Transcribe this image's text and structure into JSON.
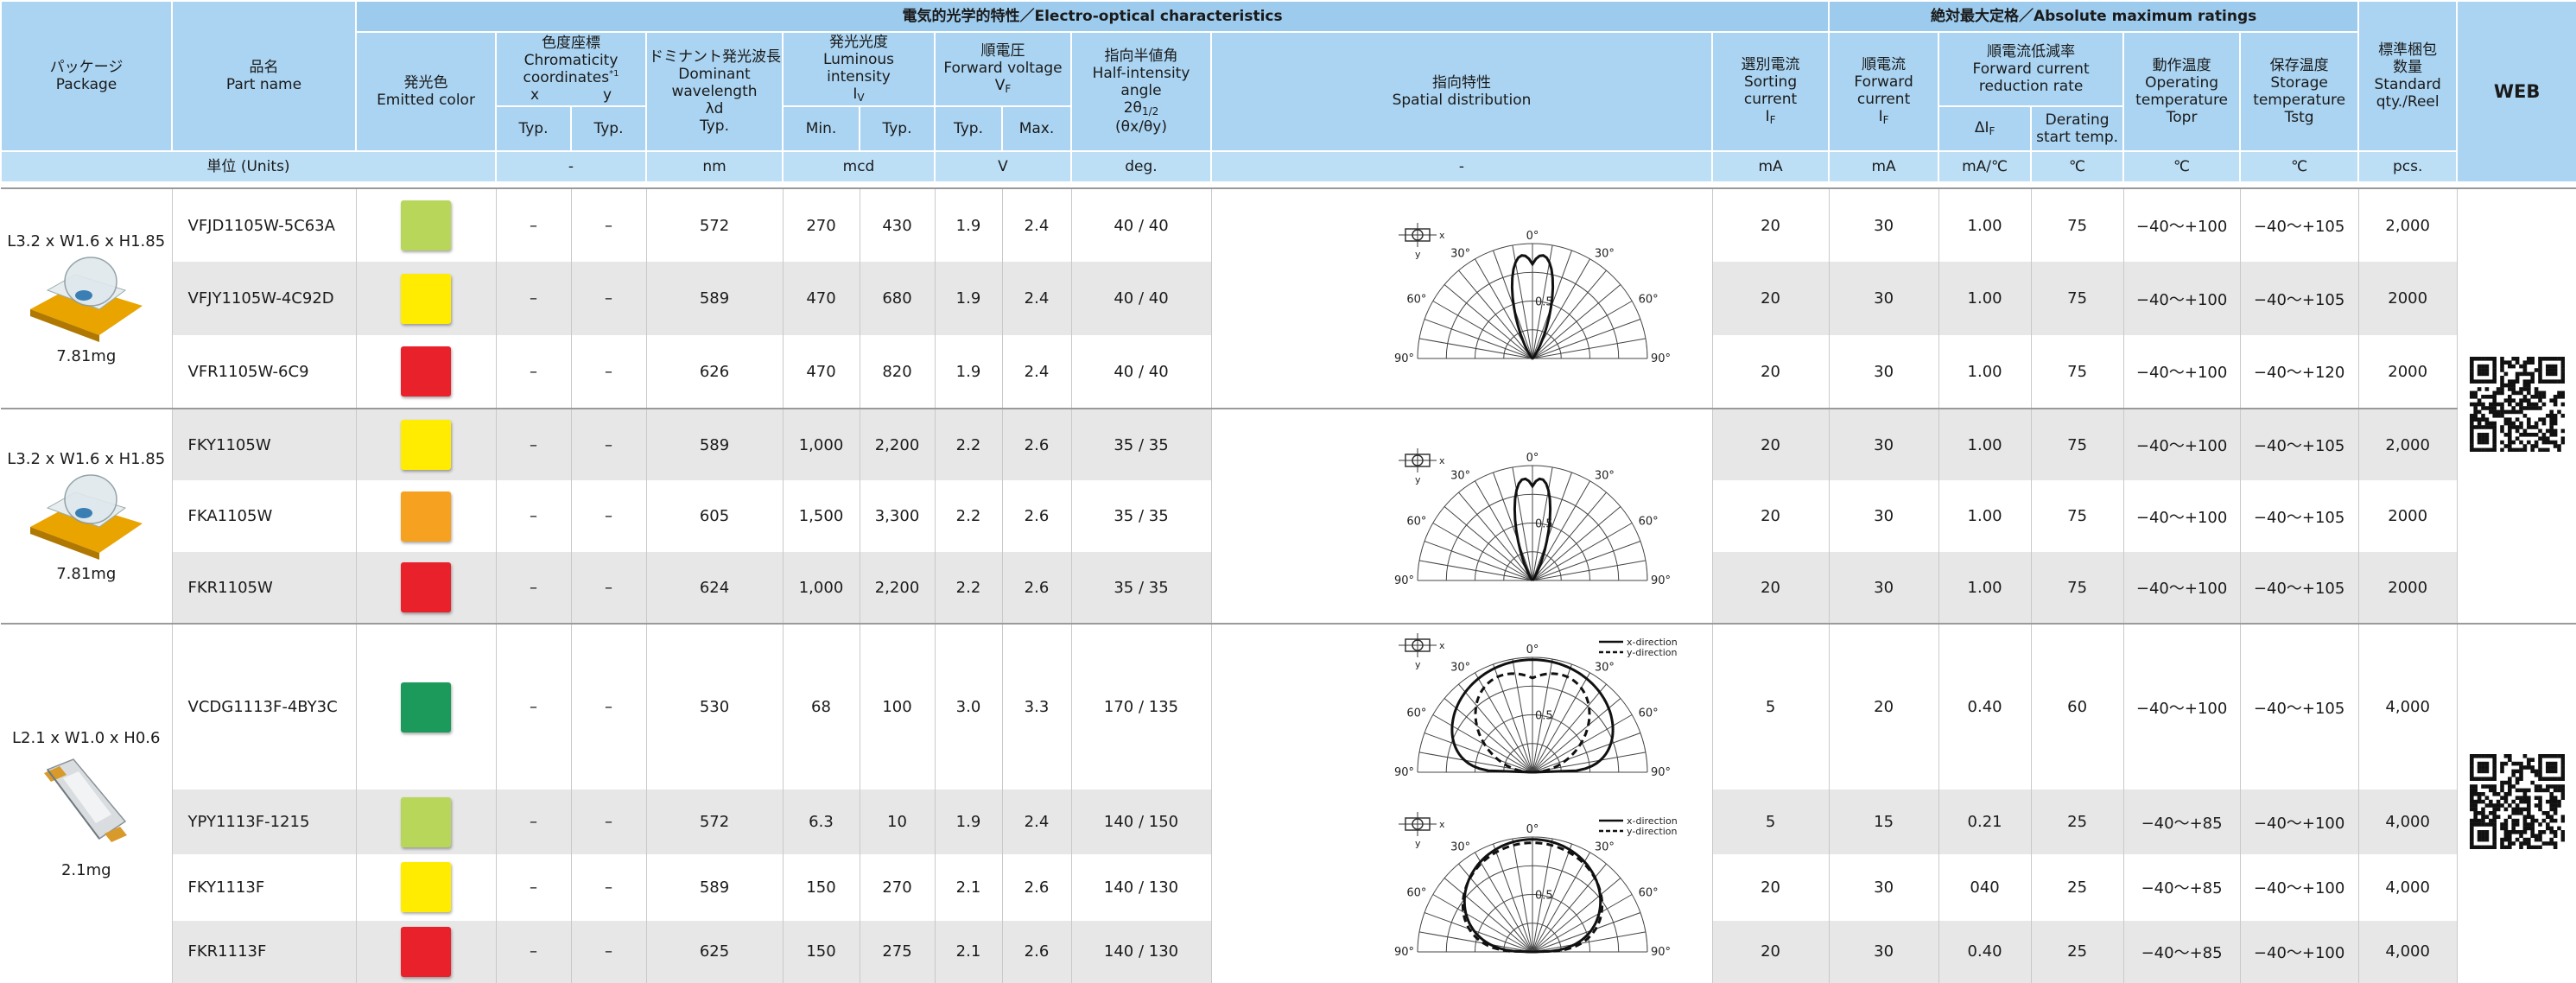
{
  "header": {
    "electro_optical": "電気的光学的特性／Electro-optical characteristics",
    "absolute_max": "絶対最大定格／Absolute maximum ratings",
    "package": {
      "ja": "パッケージ",
      "en": "Package"
    },
    "part_name": {
      "ja": "品名",
      "en": "Part name"
    },
    "emitted_color": {
      "ja": "発光色",
      "en": "Emitted color"
    },
    "chromaticity": {
      "ja": "色度座標",
      "en": [
        "Chromaticity",
        "coordinates"
      ],
      "note": "*1",
      "x": "x",
      "y": "y",
      "x_stat": "Typ.",
      "y_stat": "Typ."
    },
    "dominant": {
      "ja": "ドミナント発光波長",
      "en": [
        "Dominant",
        "wavelength"
      ],
      "symbol": "λd",
      "stat": "Typ."
    },
    "luminous": {
      "ja": "発光光度",
      "en": [
        "Luminous",
        "intensity"
      ],
      "symbol": "I",
      "symbol_sub": "V",
      "min": "Min.",
      "typ": "Typ."
    },
    "forward_voltage": {
      "ja": "順電圧",
      "en": "Forward voltage",
      "symbol": "V",
      "symbol_sub": "F",
      "typ": "Typ.",
      "max": "Max."
    },
    "half_angle": {
      "ja": "指向半値角",
      "en": [
        "Half-intensity",
        "angle"
      ],
      "symbol": "2θ",
      "symbol_sub": "1/2",
      "axes": "(θx/θy)"
    },
    "spatial": {
      "ja": "指向特性",
      "en": "Spatial distribution"
    },
    "sorting": {
      "ja": "選別電流",
      "en": [
        "Sorting",
        "current"
      ],
      "symbol": "I",
      "symbol_sub": "F"
    },
    "forward_current": {
      "ja": "順電流",
      "en": [
        "Forward",
        "current"
      ],
      "symbol": "I",
      "symbol_sub": "F"
    },
    "reduction": {
      "ja": "順電流低減率",
      "en": [
        "Forward current",
        "reduction rate"
      ],
      "symbol": "ΔI",
      "symbol_sub": "F",
      "derating": [
        "Derating",
        "start temp."
      ]
    },
    "operating": {
      "ja": "動作温度",
      "en": [
        "Operating",
        "temperature"
      ],
      "symbol": "Topr"
    },
    "storage": {
      "ja": "保存温度",
      "en": [
        "Storage",
        "temperature"
      ],
      "symbol": "Tstg"
    },
    "qty": {
      "ja": [
        "標準梱包",
        "数量"
      ],
      "en": [
        "Standard",
        "qty./Reel"
      ]
    },
    "web": "WEB"
  },
  "units": {
    "label": "単位 (Units)",
    "chromaticity": "-",
    "dominant": "nm",
    "luminous": "mcd",
    "forward_voltage": "V",
    "half_angle": "deg.",
    "spatial": "-",
    "sorting": "mA",
    "forward_current": "mA",
    "reduction": "mA/℃",
    "derating": "℃",
    "operating": "℃",
    "storage": "℃",
    "qty": "pcs."
  },
  "groups": [
    {
      "package": {
        "size": "L3.2 x W1.6 x H1.85",
        "weight": "7.81mg"
      },
      "rows": [
        {
          "part": "VFJD1105W-5C63A",
          "swatch": "#b7d65a",
          "x": "–",
          "y": "–",
          "wavelength": "572",
          "lum_min": "270",
          "lum_typ": "430",
          "vf_typ": "1.9",
          "vf_max": "2.4",
          "angle": "40 / 40",
          "spatial": {
            "axes": [
              "x",
              "y"
            ],
            "angle_0": "0°",
            "angle_30": "30°",
            "angle_60": "60°",
            "angle_90": "90°",
            "radius": "0.5"
          },
          "sorting": "20",
          "forward": "30",
          "reduction": "1.00",
          "derating": "75",
          "topr": "−40〜+100",
          "tstg": "−40〜+105",
          "qty": "2,000"
        },
        {
          "part": "VFJY1105W-4C92D",
          "swatch": "#ffec00",
          "x": "–",
          "y": "–",
          "wavelength": "589",
          "lum_min": "470",
          "lum_typ": "680",
          "vf_typ": "1.9",
          "vf_max": "2.4",
          "angle": "40 / 40",
          "sorting": "20",
          "forward": "30",
          "reduction": "1.00",
          "derating": "75",
          "topr": "−40〜+100",
          "tstg": "−40〜+105",
          "qty": "2000"
        },
        {
          "part": "VFR1105W-6C9",
          "swatch": "#e8212b",
          "x": "–",
          "y": "–",
          "wavelength": "626",
          "lum_min": "470",
          "lum_typ": "820",
          "vf_typ": "1.9",
          "vf_max": "2.4",
          "angle": "40 / 40",
          "sorting": "20",
          "forward": "30",
          "reduction": "1.00",
          "derating": "75",
          "topr": "−40〜+100",
          "tstg": "−40〜+120",
          "qty": "2000"
        }
      ]
    },
    {
      "package": {
        "size": "L3.2 x W1.6 x H1.85",
        "weight": "7.81mg"
      },
      "rows": [
        {
          "part": "FKY1105W",
          "swatch": "#ffec00",
          "x": "–",
          "y": "–",
          "wavelength": "589",
          "lum_min": "1,000",
          "lum_typ": "2,200",
          "vf_typ": "2.2",
          "vf_max": "2.6",
          "angle": "35 / 35",
          "spatial": {
            "axes": [
              "x",
              "y"
            ],
            "angle_0": "0°",
            "angle_30": "30°",
            "angle_60": "60°",
            "angle_90": "90°",
            "radius": "0.5"
          },
          "sorting": "20",
          "forward": "30",
          "reduction": "1.00",
          "derating": "75",
          "topr": "−40〜+100",
          "tstg": "−40〜+105",
          "qty": "2,000"
        },
        {
          "part": "FKA1105W",
          "swatch": "#f6a11f",
          "x": "–",
          "y": "–",
          "wavelength": "605",
          "lum_min": "1,500",
          "lum_typ": "3,300",
          "vf_typ": "2.2",
          "vf_max": "2.6",
          "angle": "35 / 35",
          "sorting": "20",
          "forward": "30",
          "reduction": "1.00",
          "derating": "75",
          "topr": "−40〜+100",
          "tstg": "−40〜+105",
          "qty": "2000"
        },
        {
          "part": "FKR1105W",
          "swatch": "#e8212b",
          "x": "–",
          "y": "–",
          "wavelength": "624",
          "lum_min": "1,000",
          "lum_typ": "2,200",
          "vf_typ": "2.2",
          "vf_max": "2.6",
          "angle": "35 / 35",
          "sorting": "20",
          "forward": "30",
          "reduction": "1.00",
          "derating": "75",
          "topr": "−40〜+100",
          "tstg": "−40〜+105",
          "qty": "2000"
        }
      ]
    },
    {
      "package": {
        "size": "L2.1 x W1.0 x H0.6",
        "weight": "2.1mg"
      },
      "rows": [
        {
          "part": "VCDG1113F-4BY3C",
          "swatch": "#1c9a5b",
          "x": "–",
          "y": "–",
          "wavelength": "530",
          "lum_min": "68",
          "lum_typ": "100",
          "vf_typ": "3.0",
          "vf_max": "3.3",
          "angle": "170 / 135",
          "spatial": {
            "axes": [
              "x",
              "y"
            ],
            "angle_0": "0°",
            "angle_30": "30°",
            "angle_60": "60°",
            "angle_90": "90°",
            "radius": "0.5",
            "legend": [
              "x-direction",
              "y-direction"
            ]
          },
          "sorting": "5",
          "forward": "20",
          "reduction": "0.40",
          "derating": "60",
          "topr": "−40〜+100",
          "tstg": "−40〜+105",
          "qty": "4,000"
        },
        {
          "part": "YPY1113F-1215",
          "swatch": "#b7d65a",
          "x": "–",
          "y": "–",
          "wavelength": "572",
          "lum_min": "6.3",
          "lum_typ": "10",
          "vf_typ": "1.9",
          "vf_max": "2.4",
          "angle": "140 / 150",
          "spatial": {
            "axes": [
              "x",
              "y"
            ],
            "angle_0": "0°",
            "angle_30": "30°",
            "angle_60": "60°",
            "angle_90": "90°",
            "radius": "0.5",
            "legend": [
              "x-direction",
              "y-direction"
            ]
          },
          "sorting": "5",
          "forward": "15",
          "reduction": "0.21",
          "derating": "25",
          "topr": "−40〜+85",
          "tstg": "−40〜+100",
          "qty": "4,000"
        },
        {
          "part": "FKY1113F",
          "swatch": "#ffec00",
          "x": "–",
          "y": "–",
          "wavelength": "589",
          "lum_min": "150",
          "lum_typ": "270",
          "vf_typ": "2.1",
          "vf_max": "2.6",
          "angle": "140 / 130",
          "sorting": "20",
          "forward": "30",
          "reduction": "040",
          "derating": "25",
          "topr": "−40〜+85",
          "tstg": "−40〜+100",
          "qty": "4,000"
        },
        {
          "part": "FKR1113F",
          "swatch": "#e8212b",
          "x": "–",
          "y": "–",
          "wavelength": "625",
          "lum_min": "150",
          "lum_typ": "275",
          "vf_typ": "2.1",
          "vf_max": "2.6",
          "angle": "140 / 130",
          "sorting": "20",
          "forward": "30",
          "reduction": "0.40",
          "derating": "25",
          "topr": "−40〜+85",
          "tstg": "−40〜+100",
          "qty": "4,000"
        }
      ]
    }
  ]
}
